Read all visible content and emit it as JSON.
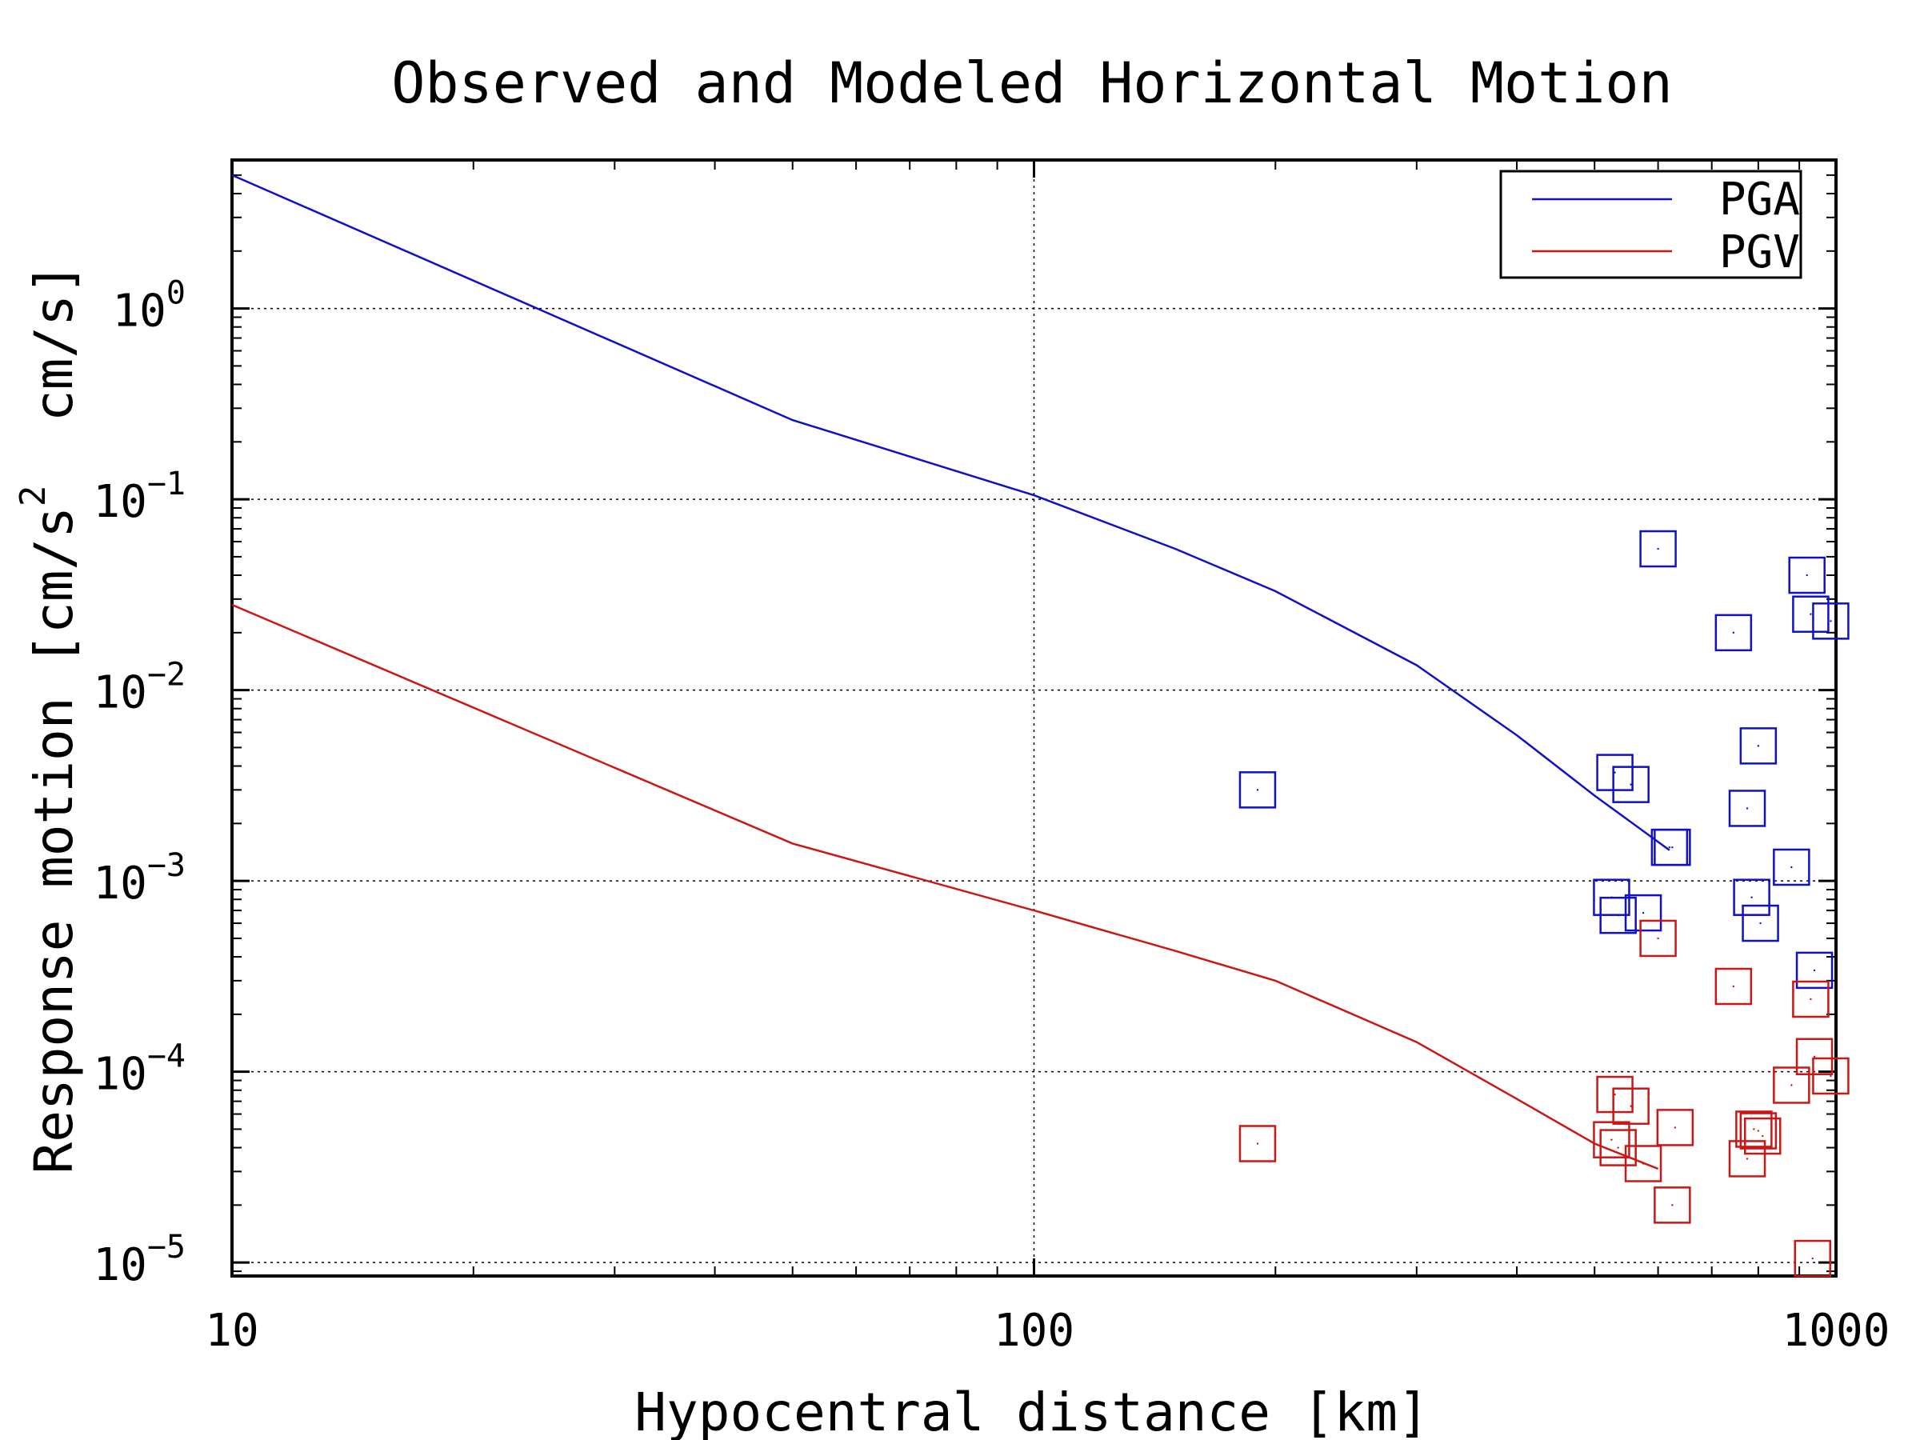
{
  "chart_data": {
    "type": "line",
    "title": "Observed and Modeled Horizontal Motion",
    "xlabel": "Hypocentral distance [km]",
    "ylabel_parts": {
      "pre": "Response motion [cm/s",
      "sup": "2",
      "post": "  cm/s]"
    },
    "x_scale": "log",
    "y_scale": "log",
    "xlim": [
      10,
      1000
    ],
    "ylim": [
      8.5e-06,
      6
    ],
    "x_ticks": [
      {
        "value": 10,
        "label": "10"
      },
      {
        "value": 100,
        "label": "100"
      },
      {
        "value": 1000,
        "label": "1000"
      }
    ],
    "y_ticks": [
      {
        "value": 1,
        "base": "10",
        "exp": "0"
      },
      {
        "value": 0.1,
        "base": "10",
        "exp": "−1"
      },
      {
        "value": 0.01,
        "base": "10",
        "exp": "−2"
      },
      {
        "value": 0.001,
        "base": "10",
        "exp": "−3"
      },
      {
        "value": 0.0001,
        "base": "10",
        "exp": "−4"
      },
      {
        "value": 1e-05,
        "base": "10",
        "exp": "−5"
      }
    ],
    "grid": true,
    "legend": "top-right",
    "series": [
      {
        "name": "PGA",
        "color": "#1010cc",
        "line": [
          [
            10,
            5
          ],
          [
            50,
            0.26
          ],
          [
            100,
            0.105
          ],
          [
            150,
            0.055
          ],
          [
            200,
            0.033
          ],
          [
            300,
            0.0135
          ],
          [
            400,
            0.0058
          ],
          [
            500,
            0.0028
          ],
          [
            620,
            0.00145
          ]
        ],
        "observed": [
          [
            190,
            0.003
          ],
          [
            600,
            0.055
          ],
          [
            745,
            0.02
          ],
          [
            920,
            0.04
          ],
          [
            930,
            0.025
          ],
          [
            985,
            0.023
          ],
          [
            800,
            0.0051
          ],
          [
            775,
            0.0024
          ],
          [
            530,
            0.0037
          ],
          [
            555,
            0.0032
          ],
          [
            620,
            0.0015
          ],
          [
            625,
            0.0015
          ],
          [
            880,
            0.00118
          ],
          [
            525,
            0.00082
          ],
          [
            785,
            0.00082
          ],
          [
            535,
            0.00066
          ],
          [
            575,
            0.00068
          ],
          [
            805,
            0.0006
          ],
          [
            940,
            0.00034
          ]
        ]
      },
      {
        "name": "PGV",
        "color": "#cc1616",
        "line": [
          [
            10,
            0.028
          ],
          [
            50,
            0.00157
          ],
          [
            100,
            0.0007
          ],
          [
            150,
            0.00043
          ],
          [
            200,
            0.0003
          ],
          [
            300,
            0.000143
          ],
          [
            400,
            7.2e-05
          ],
          [
            500,
            4.2e-05
          ],
          [
            600,
            3.1e-05
          ]
        ],
        "observed": [
          [
            190,
            4.2e-05
          ],
          [
            600,
            0.0005
          ],
          [
            745,
            0.00028
          ],
          [
            930,
            0.00024
          ],
          [
            940,
            0.00012
          ],
          [
            985,
            9.5e-05
          ],
          [
            880,
            8.5e-05
          ],
          [
            530,
            7.6e-05
          ],
          [
            555,
            6.6e-05
          ],
          [
            630,
            5.1e-05
          ],
          [
            790,
            5e-05
          ],
          [
            800,
            4.9e-05
          ],
          [
            810,
            4.6e-05
          ],
          [
            525,
            4.4e-05
          ],
          [
            535,
            4e-05
          ],
          [
            775,
            3.5e-05
          ],
          [
            575,
            3.3e-05
          ],
          [
            625,
            2e-05
          ],
          [
            935,
            1.05e-05
          ]
        ]
      }
    ]
  }
}
